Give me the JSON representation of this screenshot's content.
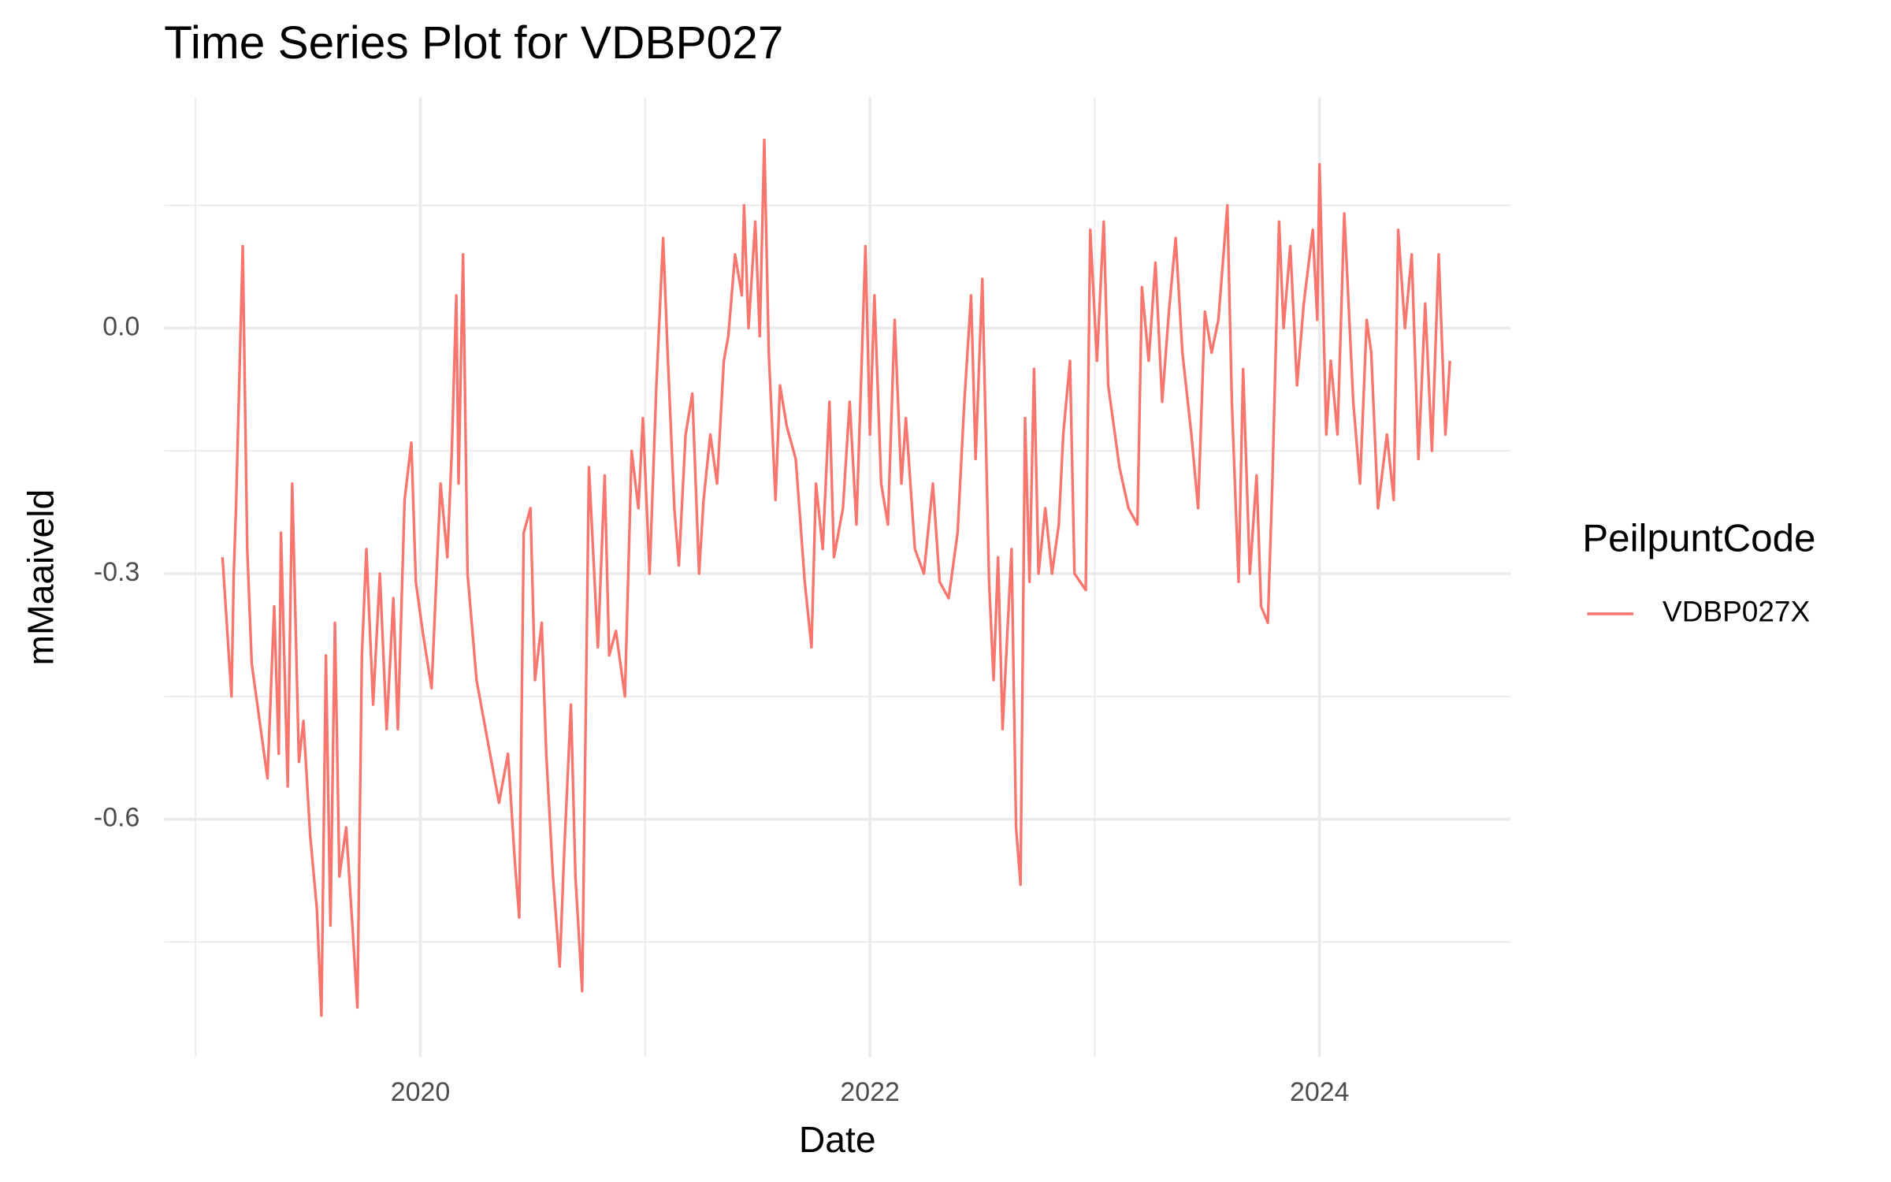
{
  "chart_data": {
    "type": "line",
    "title": "Time Series Plot for VDBP027",
    "x_label": "Date",
    "y_label": "mMaaiveld",
    "legend_title": "PeilpuntCode",
    "legend_position": "right",
    "grid": true,
    "xlim": [
      2018.86,
      2024.85
    ],
    "ylim": [
      -0.891,
      0.282
    ],
    "xticks": [
      2020,
      2022,
      2024
    ],
    "yticks": [
      {
        "value": 0,
        "label": "0.0"
      },
      -0.3,
      -0.6
    ],
    "x_minor_grid": [
      2019,
      2021,
      2023
    ],
    "y_minor_grid": [
      0.15,
      -0.15,
      -0.45,
      -0.75
    ],
    "x": [
      2019.12,
      2019.16,
      2019.17,
      2019.18,
      2019.21,
      2019.23,
      2019.25,
      2019.29,
      2019.32,
      2019.35,
      2019.37,
      2019.38,
      2019.41,
      2019.43,
      2019.46,
      2019.48,
      2019.51,
      2019.54,
      2019.56,
      2019.58,
      2019.6,
      2019.62,
      2019.64,
      2019.67,
      2019.7,
      2019.72,
      2019.74,
      2019.76,
      2019.79,
      2019.82,
      2019.85,
      2019.88,
      2019.9,
      2019.93,
      2019.96,
      2019.98,
      2020.01,
      2020.05,
      2020.09,
      2020.12,
      2020.14,
      2020.16,
      2020.17,
      2020.19,
      2020.21,
      2020.25,
      2020.29,
      2020.35,
      2020.39,
      2020.42,
      2020.44,
      2020.46,
      2020.49,
      2020.51,
      2020.54,
      2020.56,
      2020.59,
      2020.62,
      2020.64,
      2020.67,
      2020.69,
      2020.72,
      2020.75,
      2020.77,
      2020.79,
      2020.82,
      2020.84,
      2020.87,
      2020.91,
      2020.94,
      2020.97,
      2020.99,
      2021.02,
      2021.05,
      2021.08,
      2021.1,
      2021.13,
      2021.15,
      2021.18,
      2021.21,
      2021.24,
      2021.26,
      2021.29,
      2021.32,
      2021.35,
      2021.37,
      2021.4,
      2021.43,
      2021.44,
      2021.46,
      2021.49,
      2021.51,
      2021.53,
      2021.55,
      2021.58,
      2021.6,
      2021.63,
      2021.67,
      2021.71,
      2021.74,
      2021.76,
      2021.79,
      2021.82,
      2021.84,
      2021.88,
      2021.91,
      2021.94,
      2021.98,
      2022.0,
      2022.02,
      2022.05,
      2022.08,
      2022.11,
      2022.14,
      2022.16,
      2022.2,
      2022.24,
      2022.28,
      2022.31,
      2022.35,
      2022.39,
      2022.42,
      2022.45,
      2022.47,
      2022.5,
      2022.53,
      2022.55,
      2022.57,
      2022.59,
      2022.63,
      2022.65,
      2022.67,
      2022.69,
      2022.71,
      2022.73,
      2022.75,
      2022.78,
      2022.81,
      2022.84,
      2022.86,
      2022.89,
      2022.91,
      2022.96,
      2022.98,
      2023.01,
      2023.04,
      2023.06,
      2023.11,
      2023.15,
      2023.19,
      2023.21,
      2023.24,
      2023.27,
      2023.3,
      2023.33,
      2023.36,
      2023.39,
      2023.43,
      2023.46,
      2023.49,
      2023.52,
      2023.55,
      2023.59,
      2023.61,
      2023.64,
      2023.66,
      2023.69,
      2023.72,
      2023.74,
      2023.77,
      2023.79,
      2023.82,
      2023.84,
      2023.87,
      2023.9,
      2023.93,
      2023.97,
      2023.99,
      2024.0,
      2024.03,
      2024.05,
      2024.08,
      2024.11,
      2024.15,
      2024.18,
      2024.21,
      2024.23,
      2024.26,
      2024.3,
      2024.33,
      2024.35,
      2024.38,
      2024.41,
      2024.44,
      2024.47,
      2024.5,
      2024.53,
      2024.56,
      2024.58
    ],
    "series": [
      {
        "name": "VDBP027X",
        "color": "#F8766D",
        "values": [
          -0.28,
          -0.45,
          -0.3,
          -0.22,
          0.1,
          -0.27,
          -0.41,
          -0.49,
          -0.55,
          -0.34,
          -0.52,
          -0.25,
          -0.56,
          -0.19,
          -0.53,
          -0.48,
          -0.62,
          -0.71,
          -0.84,
          -0.4,
          -0.73,
          -0.36,
          -0.67,
          -0.61,
          -0.74,
          -0.83,
          -0.4,
          -0.27,
          -0.46,
          -0.3,
          -0.49,
          -0.33,
          -0.49,
          -0.21,
          -0.14,
          -0.31,
          -0.37,
          -0.44,
          -0.19,
          -0.28,
          -0.15,
          0.04,
          -0.19,
          0.09,
          -0.3,
          -0.43,
          -0.49,
          -0.58,
          -0.52,
          -0.65,
          -0.72,
          -0.25,
          -0.22,
          -0.43,
          -0.36,
          -0.52,
          -0.67,
          -0.78,
          -0.64,
          -0.46,
          -0.67,
          -0.81,
          -0.17,
          -0.28,
          -0.39,
          -0.18,
          -0.4,
          -0.37,
          -0.45,
          -0.15,
          -0.22,
          -0.11,
          -0.3,
          -0.07,
          0.11,
          -0.03,
          -0.22,
          -0.29,
          -0.13,
          -0.08,
          -0.3,
          -0.21,
          -0.13,
          -0.19,
          -0.04,
          -0.01,
          0.09,
          0.04,
          0.15,
          0.0,
          0.13,
          -0.01,
          0.23,
          -0.03,
          -0.21,
          -0.07,
          -0.12,
          -0.16,
          -0.31,
          -0.39,
          -0.19,
          -0.27,
          -0.09,
          -0.28,
          -0.22,
          -0.09,
          -0.24,
          0.1,
          -0.13,
          0.04,
          -0.19,
          -0.24,
          0.01,
          -0.19,
          -0.11,
          -0.27,
          -0.3,
          -0.19,
          -0.31,
          -0.33,
          -0.25,
          -0.09,
          0.04,
          -0.16,
          0.06,
          -0.31,
          -0.43,
          -0.28,
          -0.49,
          -0.27,
          -0.61,
          -0.68,
          -0.11,
          -0.31,
          -0.05,
          -0.3,
          -0.22,
          -0.3,
          -0.24,
          -0.13,
          -0.04,
          -0.3,
          -0.32,
          0.12,
          -0.04,
          0.13,
          -0.07,
          -0.17,
          -0.22,
          -0.24,
          0.05,
          -0.04,
          0.08,
          -0.09,
          0.02,
          0.11,
          -0.03,
          -0.13,
          -0.22,
          0.02,
          -0.03,
          0.01,
          0.15,
          -0.09,
          -0.31,
          -0.05,
          -0.3,
          -0.18,
          -0.34,
          -0.36,
          -0.19,
          0.13,
          0.0,
          0.1,
          -0.07,
          0.03,
          0.12,
          0.01,
          0.2,
          -0.13,
          -0.04,
          -0.13,
          0.14,
          -0.09,
          -0.19,
          0.01,
          -0.03,
          -0.22,
          -0.13,
          -0.21,
          0.12,
          0.0,
          0.09,
          -0.16,
          0.03,
          -0.15,
          0.09,
          -0.13,
          -0.04
        ]
      }
    ]
  }
}
